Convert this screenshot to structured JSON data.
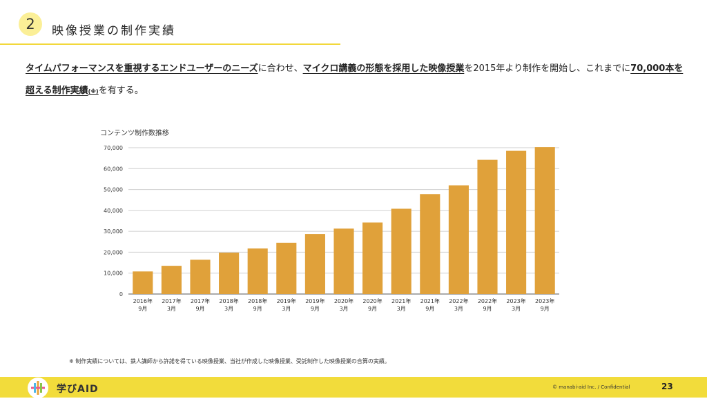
{
  "header": {
    "section_number": "2",
    "title": "映像授業の制作実績"
  },
  "lead": {
    "p1": "タイムパフォーマンスを重視するエンドユーザーのニーズ",
    "p2": "に合わせ、",
    "p3": "マイクロ講義の形態を採用した映像授業",
    "p4": "を2015年より制作を開始し、これまでに",
    "p5": "70,000本を超える制作実績",
    "p6": "(※)",
    "p7": "を有する。"
  },
  "chart_data": {
    "type": "bar",
    "title": "コンテンツ制作数推移",
    "ylim": [
      0,
      70000
    ],
    "yticks": [
      0,
      10000,
      20000,
      30000,
      40000,
      50000,
      60000,
      70000
    ],
    "ytick_labels": [
      "0",
      "10,000",
      "20,000",
      "30,000",
      "40,000",
      "50,000",
      "60,000",
      "70,000"
    ],
    "categories": [
      [
        "2016年",
        "9月"
      ],
      [
        "2017年",
        "3月"
      ],
      [
        "2017年",
        "9月"
      ],
      [
        "2018年",
        "3月"
      ],
      [
        "2018年",
        "9月"
      ],
      [
        "2019年",
        "3月"
      ],
      [
        "2019年",
        "9月"
      ],
      [
        "2020年",
        "3月"
      ],
      [
        "2020年",
        "9月"
      ],
      [
        "2021年",
        "3月"
      ],
      [
        "2021年",
        "9月"
      ],
      [
        "2022年",
        "3月"
      ],
      [
        "2022年",
        "9月"
      ],
      [
        "2023年",
        "3月"
      ],
      [
        "2023年",
        "9月"
      ]
    ],
    "values": [
      10800,
      13500,
      16400,
      19800,
      21800,
      24500,
      28700,
      31300,
      34200,
      40800,
      47800,
      52000,
      64200,
      68500,
      70300
    ],
    "bar_color": "#E0A13A",
    "grid": true
  },
  "note": "※ 制作実績については、鉄人講師から許諾を得ている映像授業、当社が作成した映像授業、受託制作した映像授業の合算の実績。",
  "footer": {
    "logo_text": "学びAID",
    "copyright": "© manabi-aid Inc. / Confidential",
    "page_number": "23"
  }
}
